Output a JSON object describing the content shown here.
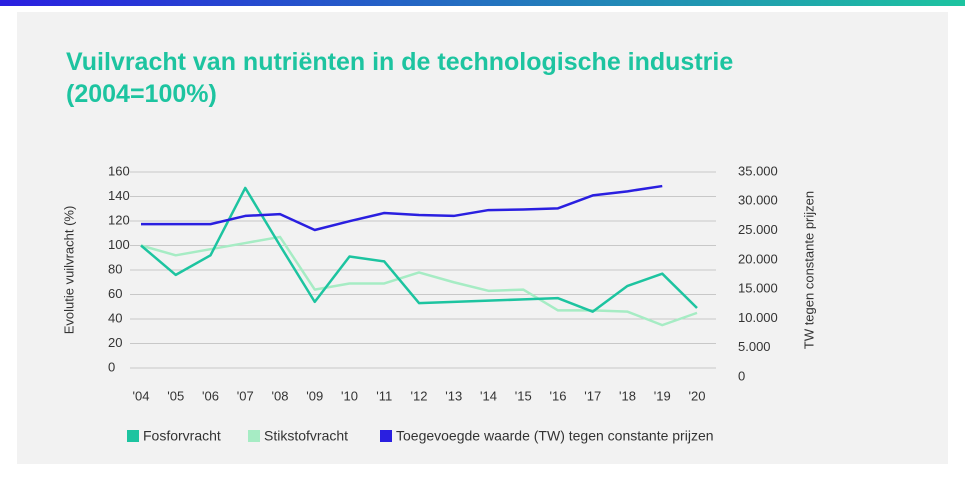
{
  "chart_data": {
    "type": "line",
    "title": "Vuilvracht van nutriënten in de technologische industrie",
    "subtitle": "(2004=100%)",
    "y_label": "Evolutie vuilvracht (%)",
    "y2_label": "TW tegen constante prijzen",
    "categories": [
      "'04",
      "'05",
      "'06",
      "'07",
      "'08",
      "'09",
      "'10",
      "'11",
      "'12",
      "'13",
      "'14",
      "'15",
      "'16",
      "'17",
      "'18",
      "'19",
      "'20"
    ],
    "series": [
      {
        "name": "Fosforvracht",
        "color": "#1dc4a0",
        "values": [
          100,
          76,
          92,
          147,
          100,
          54,
          91,
          87,
          53,
          54,
          55,
          56,
          57,
          46,
          67,
          77,
          49
        ]
      },
      {
        "name": "Stikstofvracht",
        "color": "#a6ecc4",
        "values": [
          100,
          92,
          97,
          102,
          107,
          64,
          69,
          69,
          78,
          70,
          63,
          64,
          47,
          47,
          46,
          35,
          45
        ]
      },
      {
        "name": "Toegevoegde waarde (TW) tegen constante prijzen",
        "color": "#2a1fe0",
        "axis": "y2",
        "values": [
          26100,
          26100,
          26100,
          27500,
          27800,
          25100,
          26600,
          28000,
          27650,
          27500,
          28500,
          28600,
          28800,
          31000,
          31700,
          32600,
          null
        ]
      }
    ],
    "ylim": [
      0,
      160
    ],
    "yticks": [
      0,
      20,
      40,
      60,
      80,
      100,
      120,
      140,
      160
    ],
    "y2lim": [
      0,
      35000
    ],
    "y2ticks": [
      0,
      {
        "value": 5000,
        "label": "5.000"
      },
      {
        "value": 10000,
        "label": "10.000"
      },
      {
        "value": 15000,
        "label": "15.000"
      },
      {
        "value": 20000,
        "label": "20.000"
      },
      {
        "value": 25000,
        "label": "25.000"
      },
      {
        "value": 30000,
        "label": "30.000"
      },
      {
        "value": 35000,
        "label": "35.000"
      }
    ],
    "grid": true,
    "legend": "bottom"
  }
}
